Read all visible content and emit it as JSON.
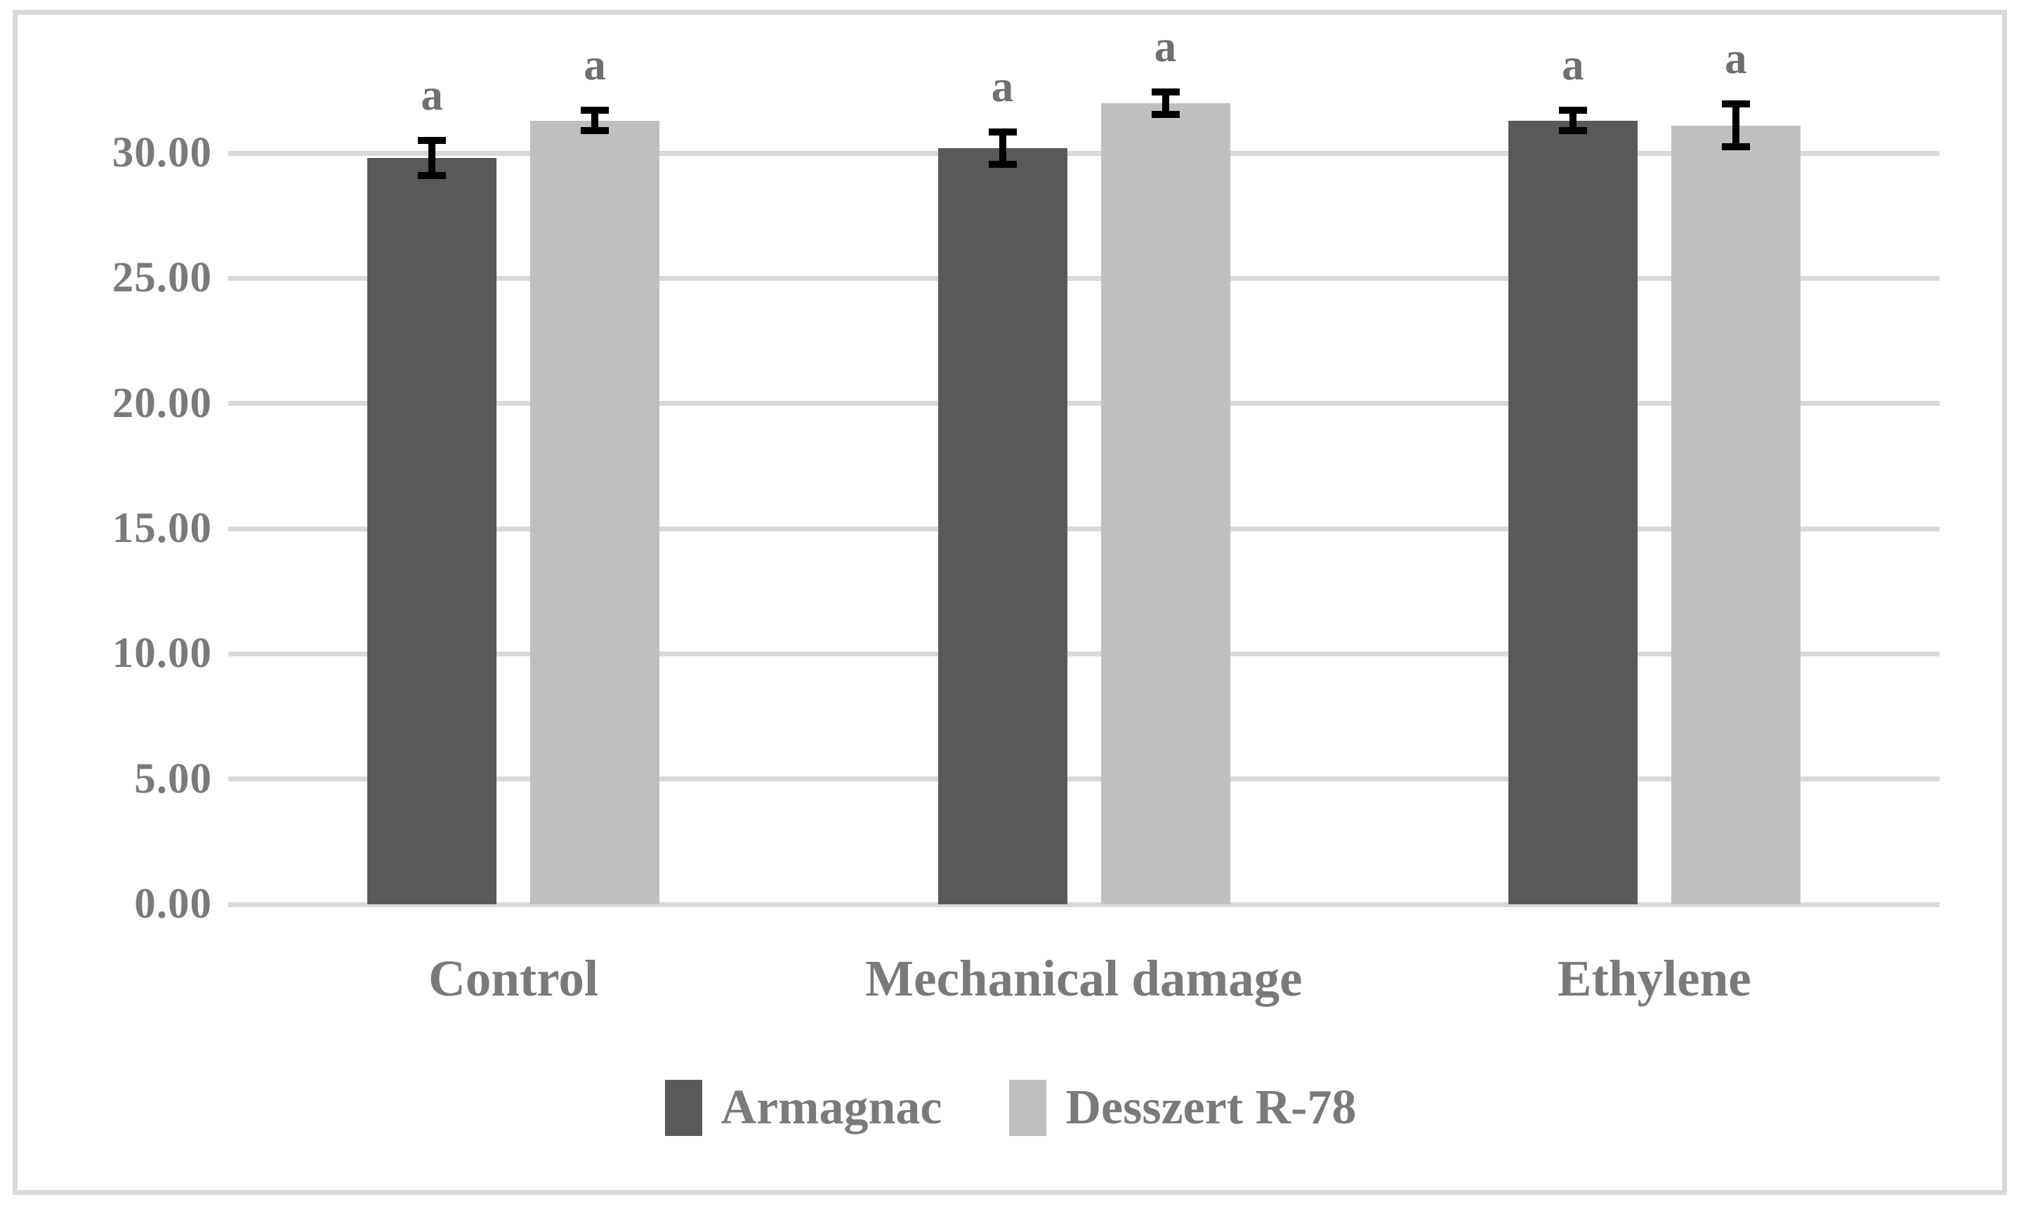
{
  "chart_data": {
    "type": "bar",
    "title": "",
    "xlabel": "",
    "ylabel": "",
    "categories": [
      "Control",
      "Mechanical damage",
      "Ethylene"
    ],
    "series": [
      {
        "name": "Armagnac",
        "color": "#595959",
        "values": [
          29.8,
          30.2,
          31.3
        ],
        "errors": [
          0.7,
          0.65,
          0.4
        ],
        "point_labels": [
          "a",
          "a",
          "a"
        ]
      },
      {
        "name": "Desszert R-78",
        "color": "#bfbfbf",
        "values": [
          31.3,
          32.0,
          31.1
        ],
        "errors": [
          0.4,
          0.45,
          0.85
        ],
        "point_labels": [
          "a",
          "a",
          "a"
        ]
      }
    ],
    "ylim": [
      0,
      30
    ],
    "y_ticks": [
      0,
      5,
      10,
      15,
      20,
      25,
      30
    ],
    "y_tick_labels": [
      "0.00",
      "5.00",
      "10.00",
      "15.00",
      "20.00",
      "25.00",
      "30.00"
    ],
    "grid": "horizontal",
    "legend_position": "bottom",
    "colors": {
      "gridline": "#d9d9d9",
      "frame_border": "#d9d9d9",
      "axis_text": "#7a7a7a",
      "sig_label_text": "#6f6f6f",
      "error_bar": "#000000",
      "background": "#ffffff"
    }
  }
}
